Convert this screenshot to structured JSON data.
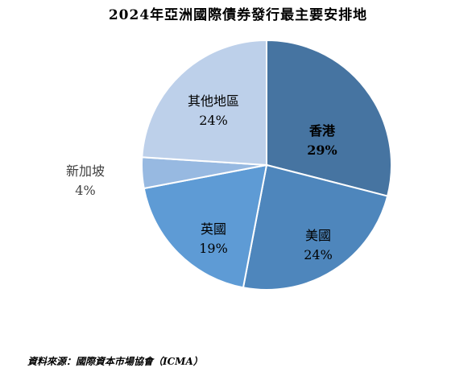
{
  "chart_data": {
    "type": "pie",
    "title": "2024年亞洲國際債券發行最主要安排地",
    "source": "資料來源：國際資本市場協會（ICMA）",
    "slices": [
      {
        "label": "香港",
        "value": 29,
        "value_label": "29%",
        "color": "#4674a1",
        "label_color": "#000000",
        "bold": true
      },
      {
        "label": "美國",
        "value": 24,
        "value_label": "24%",
        "color": "#4e86bc",
        "label_color": "#000000",
        "bold": false
      },
      {
        "label": "英國",
        "value": 19,
        "value_label": "19%",
        "color": "#5e9bd5",
        "label_color": "#000000",
        "bold": false
      },
      {
        "label": "新加坡",
        "value": 4,
        "value_label": "4%",
        "color": "#97b9e1",
        "label_color": "#404040",
        "bold": false
      },
      {
        "label": "其他地區",
        "value": 24,
        "value_label": "24%",
        "color": "#bdd0ea",
        "label_color": "#000000",
        "bold": false
      }
    ],
    "legend": "none"
  }
}
